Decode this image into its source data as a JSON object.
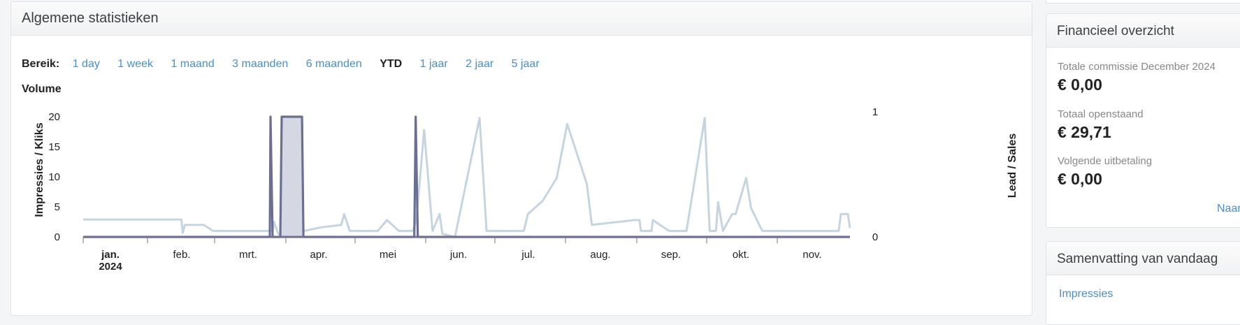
{
  "stats": {
    "title": "Algemene statistieken",
    "range_label": "Bereik:",
    "ranges": [
      "1 day",
      "1 week",
      "1 maand",
      "3 maanden",
      "6 maanden",
      "YTD",
      "1 jaar",
      "2 jaar",
      "5 jaar"
    ],
    "active_range": "YTD",
    "volume_label": "Volume"
  },
  "chart_data": {
    "type": "line",
    "ylabel": "Impressies / Kliks",
    "y2label": "Lead / Sales",
    "ylim": [
      0,
      20
    ],
    "y2lim": [
      0,
      1
    ],
    "yticks": [
      "0",
      "5",
      "10",
      "15",
      "20"
    ],
    "y2ticks": [
      "0",
      "1"
    ],
    "x_month_labels": [
      "jan.",
      "feb.",
      "mrt.",
      "apr.",
      "mei",
      "jun.",
      "jul.",
      "aug.",
      "sep.",
      "okt.",
      "nov."
    ],
    "x_year_label": "2024",
    "series": [
      {
        "color": "#c5d5e0",
        "points": [
          [
            0,
            2.9
          ],
          [
            140,
            2.9
          ],
          [
            142,
            0.7
          ],
          [
            145,
            2
          ],
          [
            172,
            2
          ],
          [
            185,
            1
          ],
          [
            270,
            1
          ],
          [
            272,
            2.5
          ],
          [
            278,
            0.5
          ],
          [
            300,
            0
          ],
          [
            315,
            1
          ],
          [
            340,
            1.6
          ],
          [
            368,
            2
          ],
          [
            372,
            3.8
          ],
          [
            380,
            1
          ],
          [
            420,
            1
          ],
          [
            433,
            2.8
          ],
          [
            450,
            1
          ],
          [
            470,
            1
          ],
          [
            475,
            2.8
          ],
          [
            486,
            17.8
          ],
          [
            498,
            1
          ],
          [
            508,
            3.8
          ],
          [
            512,
            0.5
          ],
          [
            530,
            0
          ],
          [
            565,
            19.8
          ],
          [
            575,
            1
          ],
          [
            628,
            1
          ],
          [
            634,
            3.8
          ],
          [
            655,
            6
          ],
          [
            675,
            9.8
          ],
          [
            690,
            18.8
          ],
          [
            718,
            8.8
          ],
          [
            725,
            2
          ],
          [
            785,
            2.8
          ],
          [
            793,
            2.8
          ],
          [
            795,
            1
          ],
          [
            810,
            1
          ],
          [
            812,
            2.8
          ],
          [
            835,
            1
          ],
          [
            860,
            1
          ],
          [
            886,
            19.8
          ],
          [
            893,
            1
          ],
          [
            902,
            1
          ],
          [
            905,
            5.8
          ],
          [
            912,
            1
          ],
          [
            925,
            3.8
          ],
          [
            930,
            3.8
          ],
          [
            945,
            9.8
          ],
          [
            952,
            4.8
          ],
          [
            968,
            1
          ],
          [
            1077,
            1
          ],
          [
            1080,
            3.8
          ],
          [
            1090,
            3.8
          ],
          [
            1093,
            1.5
          ]
        ]
      },
      {
        "color": "#6b6f94",
        "fill": "#d5d8e3",
        "points": [
          [
            0,
            0
          ],
          [
            266,
            0
          ],
          [
            267,
            20
          ],
          [
            270,
            0
          ],
          [
            281,
            0
          ],
          [
            283,
            20
          ],
          [
            312,
            20
          ],
          [
            314,
            0
          ],
          [
            472,
            0
          ],
          [
            474,
            20
          ],
          [
            477,
            0
          ],
          [
            1093,
            0
          ]
        ]
      }
    ]
  },
  "financial": {
    "title": "Financieel overzicht",
    "items": [
      {
        "label": "Totale commissie December 2024",
        "value": "€ 0,00"
      },
      {
        "label": "Totaal openstaand",
        "value": "€ 29,71"
      },
      {
        "label": "Volgende uitbetaling",
        "value": "€ 0,00"
      }
    ],
    "link": "Naar"
  },
  "today": {
    "title": "Samenvatting van vandaag",
    "link": "Impressies"
  }
}
